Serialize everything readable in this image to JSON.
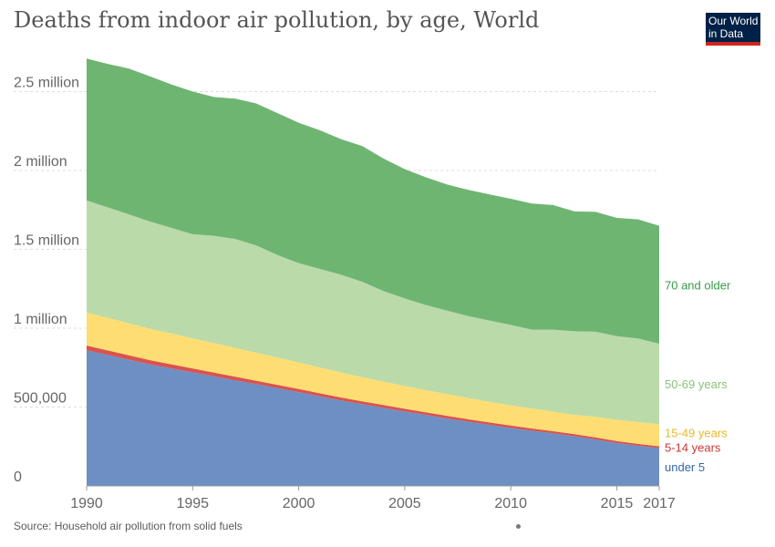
{
  "header": {
    "title": "Deaths from indoor air pollution, by age, World"
  },
  "logo": {
    "line1": "Our World",
    "line2": "in Data"
  },
  "footer": {
    "source": "Source: Household air pollution from solid fuels"
  },
  "chart_data": {
    "type": "area",
    "stacked": true,
    "title": "Deaths from indoor air pollution, by age, World",
    "xlabel": "",
    "ylabel": "",
    "xlim": [
      1990,
      2017
    ],
    "ylim": [
      0,
      2700000
    ],
    "grid": true,
    "x_ticks": [
      {
        "value": 1990,
        "label": "1990"
      },
      {
        "value": 1995,
        "label": "1995"
      },
      {
        "value": 2000,
        "label": "2000"
      },
      {
        "value": 2005,
        "label": "2005"
      },
      {
        "value": 2010,
        "label": "2010"
      },
      {
        "value": 2015,
        "label": "2015"
      },
      {
        "value": 2017,
        "label": "2017"
      }
    ],
    "y_ticks": [
      {
        "value": 0,
        "label": "0"
      },
      {
        "value": 500000,
        "label": "500,000"
      },
      {
        "value": 1000000,
        "label": "1 million"
      },
      {
        "value": 1500000,
        "label": "1.5 million"
      },
      {
        "value": 2000000,
        "label": "2 million"
      },
      {
        "value": 2500000,
        "label": "2.5 million"
      }
    ],
    "x": [
      1990,
      1991,
      1992,
      1993,
      1994,
      1995,
      1996,
      1997,
      1998,
      1999,
      2000,
      2001,
      2002,
      2003,
      2004,
      2005,
      2006,
      2007,
      2008,
      2009,
      2010,
      2011,
      2012,
      2013,
      2014,
      2015,
      2016,
      2017
    ],
    "series": [
      {
        "name": "under 5",
        "color": "#6d8fc3",
        "values": [
          860000,
          830000,
          800000,
          770000,
          745000,
          720000,
          695000,
          670000,
          645000,
          620000,
          595000,
          568000,
          542000,
          518000,
          495000,
          472000,
          450000,
          428000,
          407000,
          387000,
          368000,
          350000,
          333000,
          315000,
          295000,
          272000,
          255000,
          240000
        ]
      },
      {
        "name": "5-14 years",
        "color": "#d9534f",
        "values": [
          30000,
          29000,
          28000,
          27000,
          26000,
          25000,
          24000,
          23000,
          22000,
          21000,
          20000,
          19500,
          19000,
          18500,
          18000,
          17500,
          17000,
          16500,
          16000,
          15500,
          15000,
          14500,
          14000,
          13500,
          13000,
          12500,
          12000,
          11500
        ]
      },
      {
        "name": "15-49 years",
        "color": "#fedd72",
        "values": [
          210000,
          207000,
          203000,
          199000,
          195000,
          191000,
          187000,
          183000,
          178000,
          173000,
          168000,
          163000,
          158000,
          153000,
          148000,
          144000,
          140000,
          137000,
          134000,
          131000,
          128000,
          126000,
          124000,
          122000,
          130000,
          135000,
          138000,
          140000
        ]
      },
      {
        "name": "50-69 years",
        "color": "#bbdaa9",
        "values": [
          710000,
          700000,
          690000,
          680000,
          670000,
          660000,
          680000,
          690000,
          680000,
          650000,
          630000,
          625000,
          620000,
          605000,
          575000,
          555000,
          540000,
          530000,
          520000,
          515000,
          510000,
          500000,
          520000,
          530000,
          540000,
          530000,
          530000,
          510000
        ]
      },
      {
        "name": "70 and older",
        "color": "#6fb572",
        "values": [
          900000,
          910000,
          925000,
          920000,
          910000,
          905000,
          880000,
          890000,
          900000,
          900000,
          890000,
          880000,
          860000,
          860000,
          840000,
          820000,
          810000,
          800000,
          800000,
          800000,
          800000,
          800000,
          790000,
          760000,
          760000,
          750000,
          755000,
          748000
        ]
      }
    ],
    "series_label_colors": [
      "#3366aa",
      "#cc3333",
      "#e8b82a",
      "#8bc27a",
      "#3b9a4b"
    ]
  }
}
